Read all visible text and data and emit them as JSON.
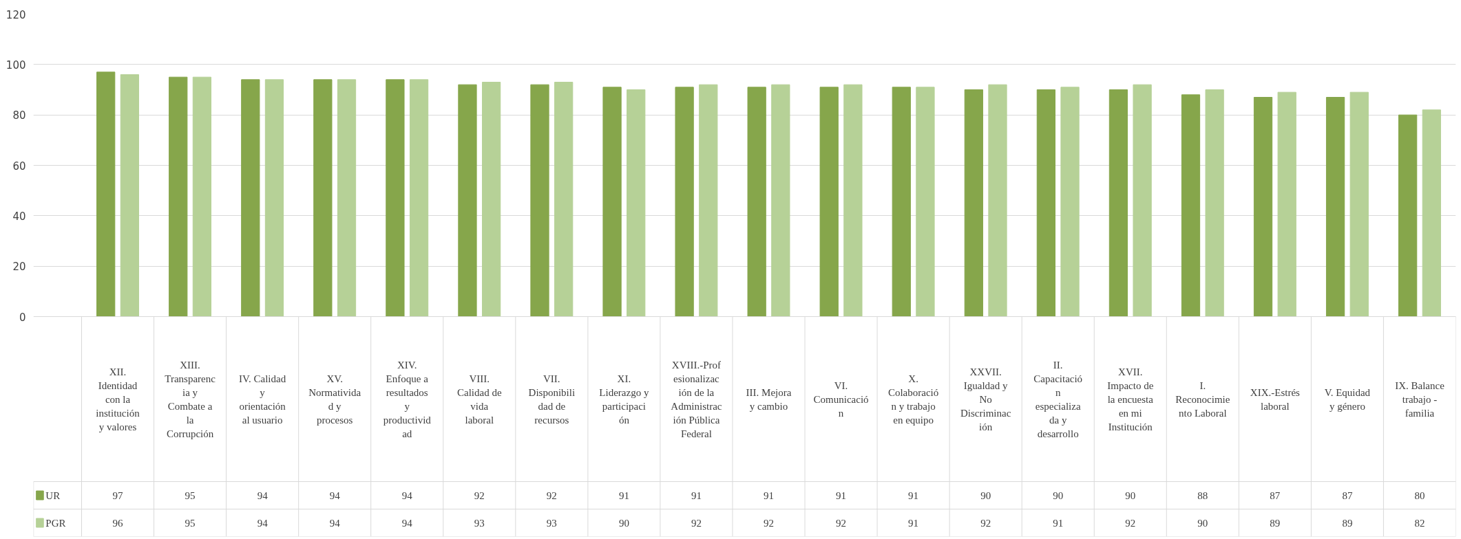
{
  "chart_data": {
    "type": "bar",
    "categories": [
      "XII. Identidad con la institución y valores",
      "XIII. Transparencia y Combate a la Corrupción",
      "IV. Calidad y orientación al usuario",
      "XV. Normatividad y procesos",
      "XIV. Enfoque a resultados y productividad",
      "VIII. Calidad de vida laboral",
      "VII. Disponibilidad de recursos",
      "XI. Liderazgo y participación",
      "XVIII.-Profesionalización de la Administración Pública Federal",
      "III. Mejora y cambio",
      "VI. Comunicación",
      "X. Colaboración y trabajo en equipo",
      "XXVII. Igualdad y No Discriminación",
      "II. Capacitación especializada y desarrollo",
      "XVII. Impacto de la encuesta en mi Institución",
      "I. Reconocimiento Laboral",
      "XIX.-Estrés laboral",
      "V. Equidad y género",
      "IX. Balance trabajo - familia"
    ],
    "series": [
      {
        "name": "UR",
        "color": "#86a64b",
        "values": [
          97,
          95,
          94,
          94,
          94,
          92,
          92,
          91,
          91,
          91,
          91,
          91,
          90,
          90,
          90,
          88,
          87,
          87,
          80
        ]
      },
      {
        "name": "PGR",
        "color": "#b6d197",
        "values": [
          96,
          95,
          94,
          94,
          94,
          93,
          93,
          90,
          92,
          92,
          92,
          91,
          92,
          91,
          92,
          90,
          89,
          89,
          82
        ]
      }
    ],
    "ylim": [
      0,
      120
    ],
    "yticks": [
      0,
      20,
      40,
      60,
      80,
      100,
      120
    ],
    "grid": "y",
    "legend": "bottom left",
    "data_labels": true
  }
}
